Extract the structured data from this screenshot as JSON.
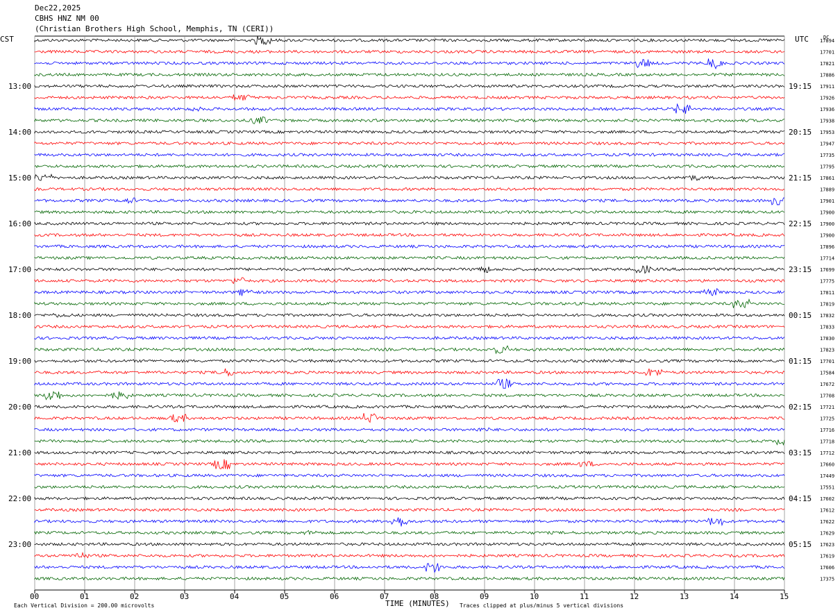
{
  "header": {
    "date": "Dec22,2025",
    "station": "CBHS HNZ NM 00",
    "location": "(Christian Brothers High School, Memphis, TN (CERI))"
  },
  "left_axis_title": "CST",
  "right_axis_title": "UTC",
  "dc_label": "DC",
  "x_axis_title": "TIME (MINUTES)",
  "footer": {
    "scale_note": "Each Vertical Division =  200.00 microvolts",
    "clip_note": "Traces clipped at plus/minus 5 vertical divisions"
  },
  "colors": {
    "c0": "#000000",
    "c1": "#ff0000",
    "c2": "#0000ff",
    "c3": "#006400",
    "grid": "#808080"
  },
  "chart_data": {
    "type": "line",
    "x": [
      "00",
      "01",
      "02",
      "03",
      "04",
      "05",
      "06",
      "07",
      "08",
      "09",
      "10",
      "11",
      "12",
      "13",
      "14",
      "15"
    ],
    "xlim": [
      0,
      15
    ],
    "trace_count": 48,
    "left_hour_labels": [
      "13:00",
      "14:00",
      "15:00",
      "16:00",
      "17:00",
      "18:00",
      "19:00",
      "20:00",
      "21:00",
      "22:00",
      "23:00"
    ],
    "right_hour_labels": [
      "19:15",
      "20:15",
      "21:15",
      "22:15",
      "23:15",
      "00:15",
      "01:15",
      "02:15",
      "03:15",
      "04:15",
      "05:15"
    ],
    "dc_offsets": [
      "17894",
      "17701",
      "17821",
      "17886",
      "17911",
      "17926",
      "17936",
      "17938",
      "17953",
      "17947",
      "17735",
      "17795",
      "17861",
      "17889",
      "17901",
      "17900",
      "17900",
      "17900",
      "17896",
      "17714",
      "17699",
      "17775",
      "17811",
      "17819",
      "17832",
      "17833",
      "17830",
      "17823",
      "17701",
      "17584",
      "17672",
      "17708",
      "17721",
      "17725",
      "17716",
      "17718",
      "17712",
      "17660",
      "17449",
      "17551",
      "17602",
      "17612",
      "17622",
      "17629",
      "17623",
      "17619",
      "17606",
      "17375"
    ],
    "series_colors": [
      "#000000",
      "#ff0000",
      "#0000ff",
      "#006400"
    ]
  }
}
